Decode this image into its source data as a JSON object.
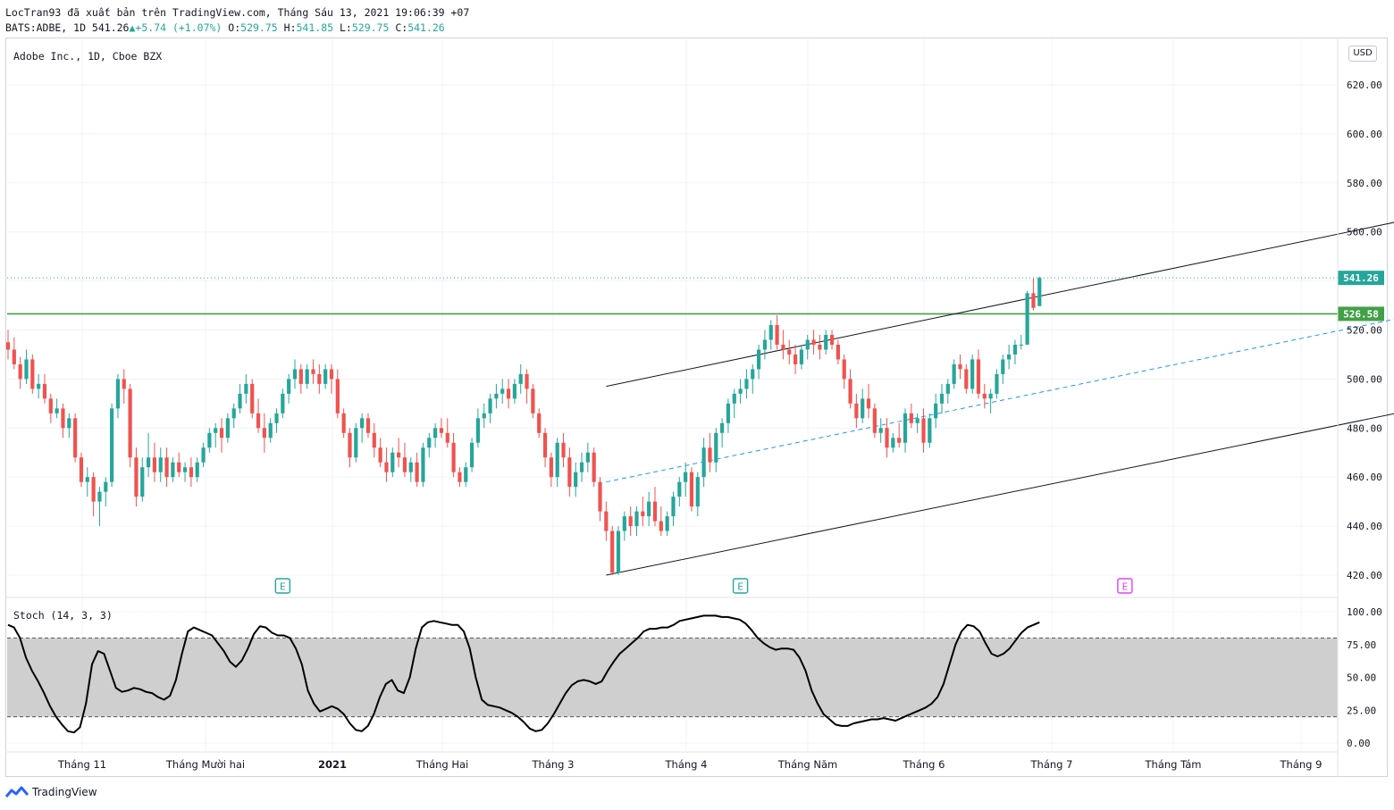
{
  "header": {
    "publish_line": "LocTran93 đã xuất bản trên TradingView.com, Tháng Sáu 13, 2021 19:06:39 +07",
    "symbol": "BATS:ADBE, 1D 541.26",
    "change": "+5.74 (+1.07%)",
    "o_label": "O:",
    "o_value": "529.75",
    "h_label": "H:",
    "h_value": "541.85",
    "l_label": "L:",
    "l_value": "529.75",
    "c_label": "C:",
    "c_value": "541.26"
  },
  "main_pane": {
    "legend": "Adobe Inc., 1D, Cboe BZX",
    "currency": "USD"
  },
  "stoch_pane": {
    "legend": "Stoch (14, 3, 3)"
  },
  "footer": {
    "brand": "TradingView"
  },
  "colors": {
    "up": "#26a69a",
    "down": "#ef5350",
    "support": "#43a047",
    "channel": "#131722",
    "midline": "#2196f3",
    "stoch": "#000000",
    "band": "#cccccc",
    "earnings_past": "#26a69a",
    "earnings_future": "#e040fb"
  },
  "chart_data": [
    {
      "type": "candlestick",
      "title": "Adobe Inc., 1D, Cboe BZX",
      "y_axis": {
        "ticks": [
          420,
          440,
          460,
          480,
          500,
          520,
          540,
          560,
          580,
          600,
          620
        ],
        "range": [
          414,
          636
        ],
        "position": "right"
      },
      "x_axis": {
        "labels": [
          "Tháng 11",
          "Tháng Mười hai",
          "2021",
          "Tháng Hai",
          "Tháng 3",
          "Tháng 4",
          "Tháng Năm",
          "Tháng 6",
          "Tháng 7",
          "Tháng Tám",
          "Tháng 9"
        ],
        "bold": [
          "2021"
        ]
      },
      "grid": true,
      "price_labels": [
        {
          "value": 541.26,
          "label": "541.26",
          "color": "#26a69a",
          "style": "dotted"
        },
        {
          "value": 526.58,
          "label": "526.58",
          "color": "#43a047",
          "style": "solid"
        }
      ],
      "series_note": "approximate daily candles Oct 2020 – Jun 11 2021",
      "candles": [
        [
          515,
          520,
          508,
          512
        ],
        [
          512,
          517,
          504,
          506
        ],
        [
          506,
          509,
          496,
          500
        ],
        [
          500,
          512,
          498,
          508
        ],
        [
          508,
          510,
          494,
          496
        ],
        [
          496,
          502,
          492,
          498
        ],
        [
          498,
          502,
          490,
          492
        ],
        [
          492,
          494,
          482,
          486
        ],
        [
          486,
          492,
          484,
          488
        ],
        [
          488,
          490,
          476,
          480
        ],
        [
          480,
          486,
          476,
          484
        ],
        [
          484,
          486,
          466,
          468
        ],
        [
          468,
          470,
          456,
          458
        ],
        [
          458,
          464,
          452,
          460
        ],
        [
          460,
          462,
          444,
          450
        ],
        [
          450,
          456,
          440,
          454
        ],
        [
          454,
          460,
          448,
          458
        ],
        [
          458,
          490,
          456,
          488
        ],
        [
          488,
          502,
          484,
          500
        ],
        [
          500,
          504,
          490,
          496
        ],
        [
          496,
          498,
          464,
          468
        ],
        [
          468,
          472,
          448,
          452
        ],
        [
          452,
          468,
          450,
          464
        ],
        [
          464,
          478,
          460,
          468
        ],
        [
          468,
          474,
          458,
          462
        ],
        [
          462,
          472,
          458,
          468
        ],
        [
          468,
          472,
          456,
          460
        ],
        [
          460,
          468,
          458,
          466
        ],
        [
          466,
          470,
          460,
          462
        ],
        [
          462,
          466,
          458,
          464
        ],
        [
          464,
          468,
          456,
          460
        ],
        [
          460,
          468,
          458,
          466
        ],
        [
          466,
          474,
          464,
          472
        ],
        [
          472,
          480,
          470,
          478
        ],
        [
          478,
          482,
          472,
          480
        ],
        [
          480,
          484,
          470,
          476
        ],
        [
          476,
          486,
          474,
          484
        ],
        [
          484,
          490,
          480,
          488
        ],
        [
          488,
          498,
          486,
          494
        ],
        [
          494,
          502,
          490,
          498
        ],
        [
          498,
          500,
          484,
          486
        ],
        [
          486,
          492,
          478,
          480
        ],
        [
          480,
          486,
          470,
          476
        ],
        [
          476,
          484,
          474,
          482
        ],
        [
          482,
          488,
          478,
          486
        ],
        [
          486,
          496,
          484,
          494
        ],
        [
          494,
          502,
          490,
          500
        ],
        [
          500,
          508,
          496,
          504
        ],
        [
          504,
          506,
          494,
          498
        ],
        [
          498,
          506,
          496,
          504
        ],
        [
          504,
          508,
          498,
          502
        ],
        [
          502,
          506,
          494,
          498
        ],
        [
          498,
          506,
          496,
          504
        ],
        [
          504,
          506,
          494,
          500
        ],
        [
          500,
          504,
          484,
          486
        ],
        [
          486,
          488,
          476,
          478
        ],
        [
          478,
          480,
          464,
          468
        ],
        [
          468,
          482,
          466,
          480
        ],
        [
          480,
          486,
          474,
          484
        ],
        [
          484,
          486,
          476,
          478
        ],
        [
          478,
          482,
          468,
          472
        ],
        [
          472,
          476,
          464,
          466
        ],
        [
          466,
          472,
          458,
          462
        ],
        [
          462,
          472,
          460,
          470
        ],
        [
          470,
          476,
          464,
          468
        ],
        [
          468,
          474,
          460,
          462
        ],
        [
          462,
          468,
          458,
          466
        ],
        [
          466,
          470,
          456,
          458
        ],
        [
          458,
          474,
          456,
          472
        ],
        [
          472,
          478,
          468,
          476
        ],
        [
          476,
          482,
          472,
          480
        ],
        [
          480,
          484,
          476,
          478
        ],
        [
          478,
          484,
          472,
          474
        ],
        [
          474,
          478,
          460,
          462
        ],
        [
          462,
          464,
          456,
          458
        ],
        [
          458,
          466,
          456,
          464
        ],
        [
          464,
          476,
          462,
          474
        ],
        [
          474,
          488,
          472,
          484
        ],
        [
          484,
          490,
          480,
          486
        ],
        [
          486,
          494,
          482,
          492
        ],
        [
          492,
          498,
          488,
          494
        ],
        [
          494,
          500,
          490,
          496
        ],
        [
          496,
          500,
          488,
          492
        ],
        [
          492,
          500,
          490,
          498
        ],
        [
          498,
          506,
          494,
          502
        ],
        [
          502,
          504,
          490,
          496
        ],
        [
          496,
          498,
          484,
          486
        ],
        [
          486,
          488,
          476,
          478
        ],
        [
          478,
          480,
          464,
          468
        ],
        [
          468,
          470,
          456,
          460
        ],
        [
          460,
          476,
          456,
          474
        ],
        [
          474,
          478,
          464,
          468
        ],
        [
          468,
          472,
          452,
          456
        ],
        [
          456,
          466,
          452,
          462
        ],
        [
          462,
          470,
          458,
          466
        ],
        [
          466,
          474,
          462,
          470
        ],
        [
          470,
          472,
          456,
          458
        ],
        [
          458,
          460,
          442,
          446
        ],
        [
          446,
          450,
          434,
          438
        ],
        [
          438,
          440,
          420,
          421
        ],
        [
          421,
          440,
          420,
          438
        ],
        [
          438,
          446,
          434,
          444
        ],
        [
          444,
          448,
          436,
          440
        ],
        [
          440,
          448,
          436,
          446
        ],
        [
          446,
          452,
          440,
          444
        ],
        [
          444,
          454,
          440,
          450
        ],
        [
          450,
          456,
          440,
          442
        ],
        [
          442,
          448,
          436,
          438
        ],
        [
          438,
          446,
          436,
          444
        ],
        [
          444,
          454,
          440,
          452
        ],
        [
          452,
          460,
          448,
          458
        ],
        [
          458,
          466,
          452,
          462
        ],
        [
          462,
          464,
          446,
          448
        ],
        [
          448,
          462,
          444,
          460
        ],
        [
          460,
          476,
          456,
          472
        ],
        [
          472,
          478,
          462,
          466
        ],
        [
          466,
          480,
          462,
          478
        ],
        [
          478,
          484,
          472,
          482
        ],
        [
          482,
          492,
          478,
          490
        ],
        [
          490,
          496,
          484,
          494
        ],
        [
          494,
          500,
          490,
          496
        ],
        [
          496,
          504,
          492,
          500
        ],
        [
          500,
          506,
          494,
          504
        ],
        [
          504,
          514,
          500,
          512
        ],
        [
          512,
          520,
          508,
          516
        ],
        [
          516,
          524,
          512,
          522
        ],
        [
          522,
          526,
          512,
          514
        ],
        [
          514,
          520,
          508,
          512
        ],
        [
          512,
          516,
          506,
          510
        ],
        [
          510,
          514,
          502,
          506
        ],
        [
          506,
          514,
          504,
          512
        ],
        [
          512,
          518,
          508,
          516
        ],
        [
          516,
          520,
          510,
          514
        ],
        [
          514,
          518,
          508,
          512
        ],
        [
          512,
          520,
          510,
          518
        ],
        [
          518,
          520,
          512,
          514
        ],
        [
          514,
          516,
          506,
          508
        ],
        [
          508,
          510,
          496,
          500
        ],
        [
          500,
          504,
          488,
          490
        ],
        [
          490,
          494,
          480,
          484
        ],
        [
          484,
          496,
          482,
          492
        ],
        [
          492,
          498,
          484,
          488
        ],
        [
          488,
          490,
          476,
          478
        ],
        [
          478,
          484,
          474,
          480
        ],
        [
          480,
          484,
          468,
          472
        ],
        [
          472,
          478,
          470,
          476
        ],
        [
          476,
          482,
          472,
          474
        ],
        [
          474,
          488,
          470,
          486
        ],
        [
          486,
          490,
          480,
          482
        ],
        [
          482,
          486,
          478,
          484
        ],
        [
          484,
          488,
          470,
          474
        ],
        [
          474,
          486,
          472,
          484
        ],
        [
          484,
          494,
          480,
          490
        ],
        [
          490,
          498,
          486,
          494
        ],
        [
          494,
          500,
          490,
          498
        ],
        [
          498,
          508,
          496,
          506
        ],
        [
          506,
          510,
          500,
          504
        ],
        [
          504,
          506,
          494,
          496
        ],
        [
          496,
          510,
          494,
          508
        ],
        [
          508,
          512,
          492,
          494
        ],
        [
          494,
          498,
          488,
          492
        ],
        [
          492,
          496,
          486,
          494
        ],
        [
          494,
          504,
          492,
          502
        ],
        [
          502,
          510,
          498,
          508
        ],
        [
          508,
          514,
          504,
          510
        ],
        [
          510,
          516,
          506,
          514
        ],
        [
          514,
          518,
          512,
          514
        ],
        [
          514,
          536,
          514,
          535
        ],
        [
          535,
          541,
          528,
          529
        ],
        [
          529.75,
          541.85,
          529.75,
          541.26
        ]
      ],
      "channel": {
        "upper": [
          [
            98,
            497
          ],
          [
            347,
            626
          ]
        ],
        "lower": [
          [
            98,
            420
          ],
          [
            347,
            547
          ]
        ],
        "midline": [
          [
            98,
            458
          ],
          [
            347,
            586
          ]
        ],
        "style_mid": "dashed"
      },
      "earnings_markers": [
        {
          "index": 45,
          "label": "E",
          "kind": "past"
        },
        {
          "index": 120,
          "label": "E",
          "kind": "past"
        },
        {
          "index": 183,
          "label": "E",
          "kind": "future"
        }
      ]
    },
    {
      "type": "line",
      "title": "Stoch (14, 3, 3)",
      "y_axis": {
        "ticks": [
          0,
          25,
          50,
          75,
          100
        ],
        "tick_labels": [
          "0.00",
          "25.00",
          "50.00",
          "75.00",
          "100.00"
        ],
        "range": [
          -10,
          108
        ]
      },
      "bands": {
        "upper": 80,
        "lower": 20
      },
      "series": [
        {
          "values": [
            90,
            88,
            80,
            65,
            55,
            47,
            38,
            28,
            20,
            14,
            9,
            8,
            12,
            30,
            60,
            70,
            68,
            55,
            42,
            39,
            40,
            42,
            41,
            39,
            38,
            35,
            33,
            36,
            48,
            68,
            85,
            88,
            86,
            84,
            82,
            76,
            70,
            62,
            58,
            63,
            72,
            83,
            89,
            88,
            84,
            82,
            82,
            80,
            72,
            60,
            40,
            30,
            24,
            26,
            28,
            26,
            22,
            15,
            10,
            9,
            13,
            22,
            35,
            45,
            48,
            40,
            38,
            50,
            72,
            88,
            92,
            93,
            92,
            91,
            90,
            90,
            85,
            72,
            50,
            33,
            29,
            28,
            27,
            25,
            23,
            20,
            16,
            11,
            9,
            10,
            15,
            22,
            30,
            38,
            44,
            47,
            48,
            47,
            45,
            47,
            55,
            62,
            68,
            72,
            76,
            80,
            85,
            87,
            87,
            88,
            88,
            90,
            93,
            94,
            95,
            96,
            97,
            97,
            97,
            96,
            96,
            95,
            94,
            91,
            86,
            80,
            76,
            73,
            71,
            72,
            72,
            71,
            65,
            55,
            40,
            30,
            22,
            18,
            14,
            13,
            13,
            15,
            16,
            17,
            18,
            18,
            19,
            18,
            17,
            19,
            21,
            23,
            25,
            27,
            30,
            35,
            45,
            60,
            75,
            85,
            90,
            89,
            85,
            76,
            68,
            66,
            68,
            72,
            78,
            84,
            88,
            90,
            92
          ]
        }
      ]
    }
  ]
}
